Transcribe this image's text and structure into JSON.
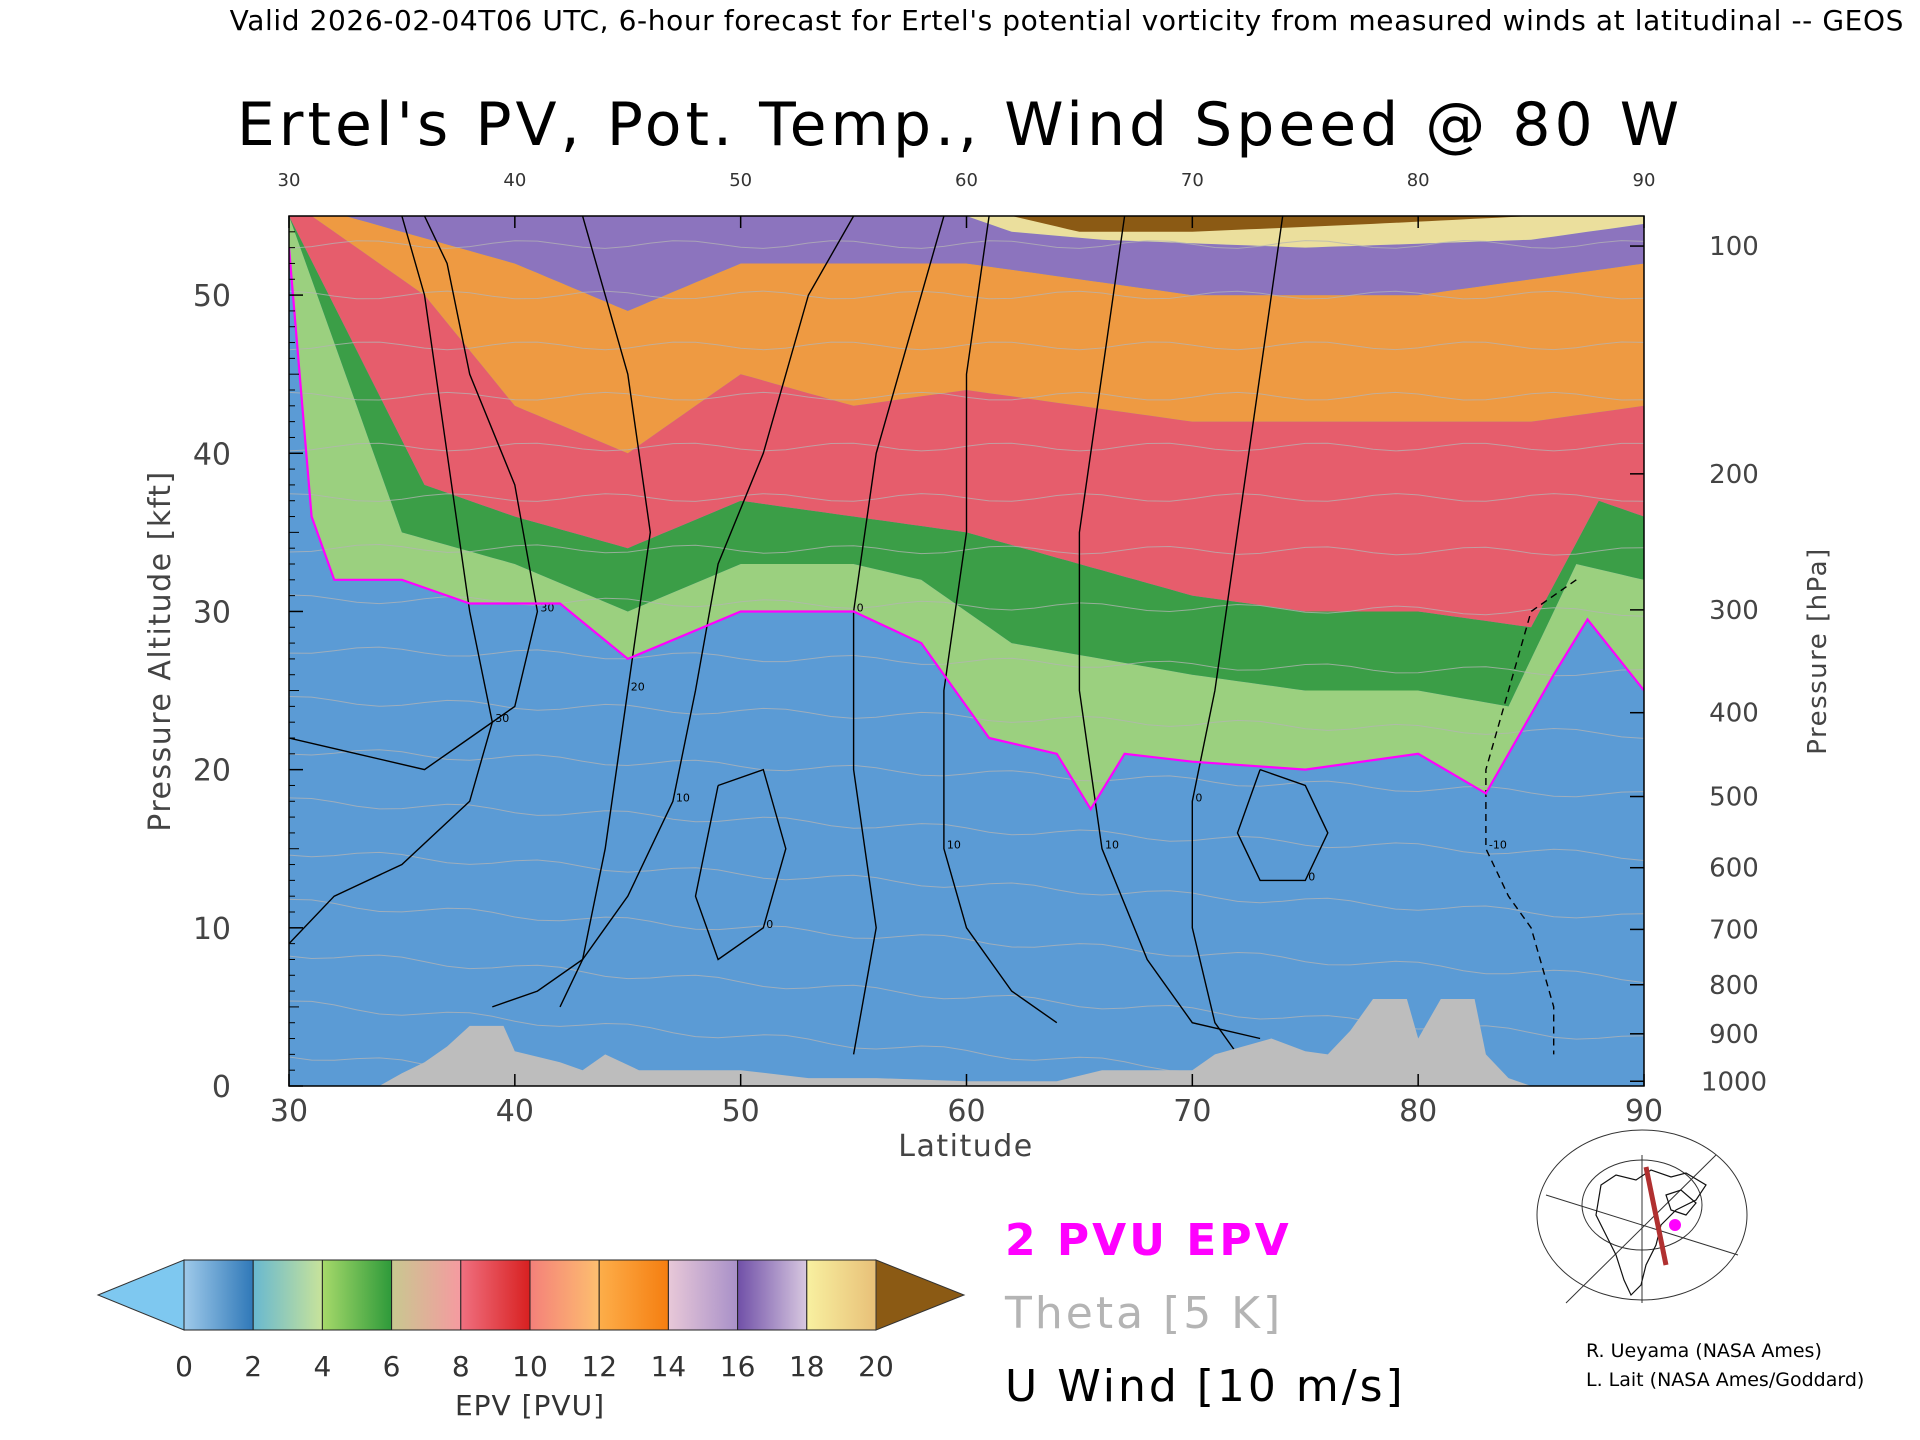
{
  "header": {
    "valid_line": "Valid 2026-02-04T06 UTC, 6-hour forecast for Ertel's potential vorticity from measured winds at latitudinal -- GEOS"
  },
  "chart_data": {
    "type": "heatmap",
    "title": "Ertel's PV, Pot. Temp., Wind Speed @ 80 W",
    "xlabel": "Latitude",
    "ylabel": "Pressure Altitude [kft]",
    "y2label": "Pressure [hPa]",
    "xlim": [
      30,
      90
    ],
    "ylim": [
      0,
      55
    ],
    "x_ticks": [
      "30",
      "40",
      "50",
      "60",
      "70",
      "80",
      "90"
    ],
    "y_ticks": [
      "0",
      "10",
      "20",
      "30",
      "40",
      "50"
    ],
    "pressure_ticks": [
      {
        "label": "1000",
        "kft": 0.3
      },
      {
        "label": "900",
        "kft": 3.3
      },
      {
        "label": "800",
        "kft": 6.4
      },
      {
        "label": "700",
        "kft": 9.9
      },
      {
        "label": "600",
        "kft": 13.8
      },
      {
        "label": "500",
        "kft": 18.3
      },
      {
        "label": "400",
        "kft": 23.6
      },
      {
        "label": "300",
        "kft": 30.1
      },
      {
        "label": "200",
        "kft": 38.7
      },
      {
        "label": "100",
        "kft": 53.1
      }
    ],
    "colorbar": {
      "label": "EPV [PVU]",
      "ticks": [
        "0",
        "2",
        "4",
        "6",
        "8",
        "10",
        "12",
        "14",
        "16",
        "18",
        "20"
      ],
      "under_color": "#7ec8f0",
      "over_color": "#8b5a14",
      "bands": [
        {
          "from": 0,
          "to": 2,
          "colors": [
            "#9fcaea",
            "#2f78b8"
          ]
        },
        {
          "from": 2,
          "to": 4,
          "colors": [
            "#68b8d0",
            "#c8e39a"
          ]
        },
        {
          "from": 4,
          "to": 6,
          "colors": [
            "#a6d96a",
            "#2e9a3a"
          ]
        },
        {
          "from": 6,
          "to": 8,
          "colors": [
            "#c8c890",
            "#f59aa0"
          ]
        },
        {
          "from": 8,
          "to": 10,
          "colors": [
            "#f07080",
            "#d82020"
          ]
        },
        {
          "from": 10,
          "to": 12,
          "colors": [
            "#f4807a",
            "#fdbf6f"
          ]
        },
        {
          "from": 12,
          "to": 14,
          "colors": [
            "#fdae4a",
            "#f57e10"
          ]
        },
        {
          "from": 14,
          "to": 16,
          "colors": [
            "#e8c8d8",
            "#a890c8"
          ]
        },
        {
          "from": 16,
          "to": 18,
          "colors": [
            "#7050a8",
            "#d8c8e0"
          ]
        },
        {
          "from": 18,
          "to": 20,
          "colors": [
            "#f8f0a0",
            "#e8c078"
          ]
        }
      ]
    },
    "tropopause_2pvu_kft": [
      {
        "lat": 30,
        "kft": 53
      },
      {
        "lat": 31,
        "kft": 36
      },
      {
        "lat": 32,
        "kft": 32
      },
      {
        "lat": 35,
        "kft": 32
      },
      {
        "lat": 38,
        "kft": 30.5
      },
      {
        "lat": 42,
        "kft": 30.5
      },
      {
        "lat": 45,
        "kft": 27
      },
      {
        "lat": 50,
        "kft": 30
      },
      {
        "lat": 55,
        "kft": 30
      },
      {
        "lat": 58,
        "kft": 28
      },
      {
        "lat": 61,
        "kft": 22
      },
      {
        "lat": 64,
        "kft": 21
      },
      {
        "lat": 65.5,
        "kft": 17.5
      },
      {
        "lat": 67,
        "kft": 21
      },
      {
        "lat": 70,
        "kft": 20.5
      },
      {
        "lat": 75,
        "kft": 20
      },
      {
        "lat": 80,
        "kft": 21
      },
      {
        "lat": 83,
        "kft": 18.5
      },
      {
        "lat": 86,
        "kft": 26
      },
      {
        "lat": 87.5,
        "kft": 29.5
      },
      {
        "lat": 90,
        "kft": 25
      }
    ],
    "pv_2to4_top_kft": [
      {
        "lat": 30,
        "kft": 55
      },
      {
        "lat": 35,
        "kft": 35
      },
      {
        "lat": 40,
        "kft": 33
      },
      {
        "lat": 45,
        "kft": 30
      },
      {
        "lat": 50,
        "kft": 33
      },
      {
        "lat": 55,
        "kft": 33
      },
      {
        "lat": 58,
        "kft": 32
      },
      {
        "lat": 62,
        "kft": 28
      },
      {
        "lat": 66,
        "kft": 27
      },
      {
        "lat": 70,
        "kft": 26
      },
      {
        "lat": 75,
        "kft": 25
      },
      {
        "lat": 80,
        "kft": 25
      },
      {
        "lat": 84,
        "kft": 24
      },
      {
        "lat": 87,
        "kft": 33
      },
      {
        "lat": 90,
        "kft": 32
      }
    ],
    "pv_4to6_top_kft": [
      {
        "lat": 30,
        "kft": 55
      },
      {
        "lat": 36,
        "kft": 38
      },
      {
        "lat": 40,
        "kft": 36
      },
      {
        "lat": 45,
        "kft": 34
      },
      {
        "lat": 50,
        "kft": 37
      },
      {
        "lat": 55,
        "kft": 36
      },
      {
        "lat": 60,
        "kft": 35
      },
      {
        "lat": 65,
        "kft": 33
      },
      {
        "lat": 70,
        "kft": 31
      },
      {
        "lat": 75,
        "kft": 30
      },
      {
        "lat": 80,
        "kft": 30
      },
      {
        "lat": 85,
        "kft": 29
      },
      {
        "lat": 88,
        "kft": 37
      },
      {
        "lat": 90,
        "kft": 36
      }
    ],
    "pv_6to10_top_kft": [
      {
        "lat": 30,
        "kft": 56
      },
      {
        "lat": 36,
        "kft": 50
      },
      {
        "lat": 40,
        "kft": 43
      },
      {
        "lat": 45,
        "kft": 40
      },
      {
        "lat": 50,
        "kft": 45
      },
      {
        "lat": 55,
        "kft": 43
      },
      {
        "lat": 60,
        "kft": 44
      },
      {
        "lat": 65,
        "kft": 43
      },
      {
        "lat": 70,
        "kft": 42
      },
      {
        "lat": 75,
        "kft": 42
      },
      {
        "lat": 80,
        "kft": 42
      },
      {
        "lat": 85,
        "kft": 42
      },
      {
        "lat": 90,
        "kft": 43
      }
    ],
    "pv_10to14_top_kft": [
      {
        "lat": 30,
        "kft": 56
      },
      {
        "lat": 40,
        "kft": 52
      },
      {
        "lat": 45,
        "kft": 49
      },
      {
        "lat": 50,
        "kft": 52
      },
      {
        "lat": 55,
        "kft": 52
      },
      {
        "lat": 60,
        "kft": 52
      },
      {
        "lat": 65,
        "kft": 51
      },
      {
        "lat": 70,
        "kft": 50
      },
      {
        "lat": 75,
        "kft": 50
      },
      {
        "lat": 80,
        "kft": 50
      },
      {
        "lat": 85,
        "kft": 51
      },
      {
        "lat": 90,
        "kft": 52
      }
    ],
    "pv_14to18_top_kft": [
      {
        "lat": 30,
        "kft": 56
      },
      {
        "lat": 55,
        "kft": 56
      },
      {
        "lat": 60,
        "kft": 55
      },
      {
        "lat": 62,
        "kft": 54
      },
      {
        "lat": 66,
        "kft": 53.5
      },
      {
        "lat": 75,
        "kft": 53
      },
      {
        "lat": 85,
        "kft": 53.5
      },
      {
        "lat": 90,
        "kft": 54.5
      }
    ],
    "pv_over20_bottom_kft": [
      {
        "lat": 62,
        "kft": 55
      },
      {
        "lat": 65,
        "kft": 54
      },
      {
        "lat": 70,
        "kft": 54
      },
      {
        "lat": 78,
        "kft": 54.5
      },
      {
        "lat": 85,
        "kft": 55
      }
    ],
    "wind_contours_ms": [
      {
        "label": "30",
        "points": [
          [
            30,
            22
          ],
          [
            33,
            21
          ],
          [
            36,
            20
          ],
          [
            38,
            22
          ],
          [
            40,
            24
          ],
          [
            41,
            30
          ],
          [
            40,
            38
          ],
          [
            38,
            45
          ],
          [
            37,
            52
          ],
          [
            36,
            55
          ]
        ]
      },
      {
        "label": "30",
        "points": [
          [
            30,
            9
          ],
          [
            32,
            12
          ],
          [
            35,
            14
          ],
          [
            38,
            18
          ],
          [
            39,
            23
          ],
          [
            38,
            30
          ],
          [
            37,
            40
          ],
          [
            36,
            50
          ],
          [
            35,
            55
          ]
        ]
      },
      {
        "label": "20",
        "points": [
          [
            43,
            55
          ],
          [
            45,
            45
          ],
          [
            46,
            35
          ],
          [
            45,
            25
          ],
          [
            44,
            15
          ],
          [
            43,
            8
          ],
          [
            42,
            5
          ]
        ]
      },
      {
        "label": "10",
        "points": [
          [
            39,
            5
          ],
          [
            41,
            6
          ],
          [
            43,
            8
          ],
          [
            44,
            10
          ],
          [
            45,
            12
          ],
          [
            47,
            18
          ],
          [
            48,
            25
          ],
          [
            49,
            33
          ],
          [
            51,
            40
          ],
          [
            53,
            50
          ],
          [
            55,
            55
          ]
        ]
      },
      {
        "label": "0",
        "points": [
          [
            55,
            2
          ],
          [
            56,
            10
          ],
          [
            55,
            20
          ],
          [
            55,
            30
          ],
          [
            56,
            40
          ],
          [
            58,
            50
          ],
          [
            59,
            55
          ]
        ]
      },
      {
        "label": "10",
        "points": [
          [
            61,
            55
          ],
          [
            60,
            45
          ],
          [
            60,
            35
          ],
          [
            59,
            25
          ],
          [
            59,
            15
          ],
          [
            60,
            10
          ],
          [
            62,
            6
          ],
          [
            64,
            4
          ]
        ]
      },
      {
        "label": "10",
        "points": [
          [
            67,
            55
          ],
          [
            66,
            45
          ],
          [
            65,
            35
          ],
          [
            65,
            25
          ],
          [
            66,
            15
          ],
          [
            68,
            8
          ],
          [
            70,
            4
          ],
          [
            73,
            3
          ]
        ]
      },
      {
        "label": "0",
        "points": [
          [
            74,
            55
          ],
          [
            73,
            45
          ],
          [
            72,
            35
          ],
          [
            71,
            25
          ],
          [
            70,
            18
          ],
          [
            70,
            10
          ],
          [
            71,
            4
          ],
          [
            72,
            2
          ]
        ]
      },
      {
        "label": "0",
        "points": [
          [
            73,
            20
          ],
          [
            75,
            19
          ],
          [
            76,
            16
          ],
          [
            75,
            13
          ],
          [
            73,
            13
          ],
          [
            72,
            16
          ],
          [
            73,
            20
          ]
        ]
      },
      {
        "label": "0",
        "points": [
          [
            49,
            19
          ],
          [
            51,
            20
          ],
          [
            52,
            15
          ],
          [
            51,
            10
          ],
          [
            49,
            8
          ],
          [
            48,
            12
          ],
          [
            49,
            19
          ]
        ]
      },
      {
        "label": "-10",
        "points": [
          [
            87,
            32
          ],
          [
            85,
            30
          ],
          [
            84,
            25
          ],
          [
            83,
            20
          ],
          [
            83,
            15
          ],
          [
            84,
            12
          ],
          [
            85,
            10
          ],
          [
            86,
            5
          ],
          [
            86,
            2
          ]
        ]
      }
    ],
    "terrain_kft": [
      {
        "lat": 30,
        "kft": 0
      },
      {
        "lat": 34,
        "kft": 0
      },
      {
        "lat": 35,
        "kft": 0.8
      },
      {
        "lat": 36,
        "kft": 1.5
      },
      {
        "lat": 37,
        "kft": 2.5
      },
      {
        "lat": 38,
        "kft": 3.8
      },
      {
        "lat": 39.5,
        "kft": 3.8
      },
      {
        "lat": 40,
        "kft": 2.2
      },
      {
        "lat": 42,
        "kft": 1.5
      },
      {
        "lat": 43,
        "kft": 1.0
      },
      {
        "lat": 44,
        "kft": 2.0
      },
      {
        "lat": 45.5,
        "kft": 1.0
      },
      {
        "lat": 50,
        "kft": 1.0
      },
      {
        "lat": 53,
        "kft": 0.5
      },
      {
        "lat": 56,
        "kft": 0.5
      },
      {
        "lat": 60,
        "kft": 0.3
      },
      {
        "lat": 64,
        "kft": 0.3
      },
      {
        "lat": 66,
        "kft": 1.0
      },
      {
        "lat": 70,
        "kft": 1.0
      },
      {
        "lat": 71,
        "kft": 2.0
      },
      {
        "lat": 73.5,
        "kft": 3.0
      },
      {
        "lat": 75,
        "kft": 2.2
      },
      {
        "lat": 76,
        "kft": 2.0
      },
      {
        "lat": 77,
        "kft": 3.5
      },
      {
        "lat": 78,
        "kft": 5.5
      },
      {
        "lat": 79.5,
        "kft": 5.5
      },
      {
        "lat": 80,
        "kft": 3.0
      },
      {
        "lat": 81,
        "kft": 5.5
      },
      {
        "lat": 82.5,
        "kft": 5.5
      },
      {
        "lat": 83,
        "kft": 2.0
      },
      {
        "lat": 84,
        "kft": 0.5
      },
      {
        "lat": 85,
        "kft": 0
      }
    ]
  },
  "legend": {
    "pv_line": "2 PVU EPV",
    "theta": "Theta [5 K]",
    "wind": "U Wind [10 m/s]",
    "pv_color": "#ff00ff",
    "theta_color": "#b4b4b4"
  },
  "credits": {
    "line1": "R. Ueyama (NASA Ames)",
    "line2": "L. Lait (NASA Ames/Goddard)"
  },
  "inset_map": {
    "marker_color": "#ff00ff",
    "track_color": "#b03030"
  }
}
